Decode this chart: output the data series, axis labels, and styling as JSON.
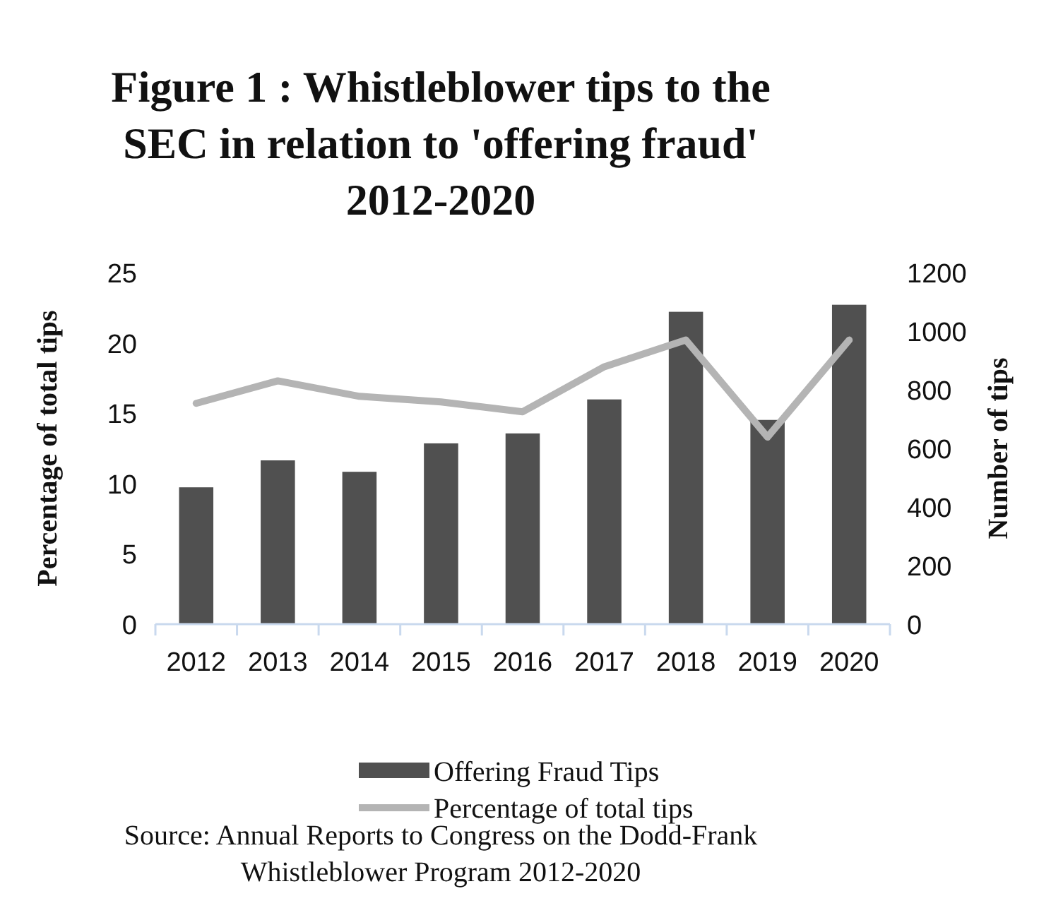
{
  "chart_data": {
    "type": "bar",
    "title": "Figure 1 : Whistleblower tips to the SEC in relation to 'offering fraud' 2012-2020",
    "ylabel": "Percentage of total tips",
    "y2label": "Number of tips",
    "categories": [
      "2012",
      "2013",
      "2014",
      "2015",
      "2016",
      "2017",
      "2018",
      "2019",
      "2020"
    ],
    "series": [
      {
        "name": "Offering Fraud Tips",
        "axis": "y2",
        "color": "#505050",
        "values": [
          467,
          559,
          520,
          617,
          651,
          767,
          1066,
          697,
          1090
        ]
      },
      {
        "name": "Percentage of total tips",
        "type": "line",
        "axis": "y",
        "color": "#b4b4b4",
        "values": [
          15.7,
          17.3,
          16.2,
          15.8,
          15.1,
          18.3,
          20.2,
          13.3,
          20.2
        ]
      }
    ],
    "ylim": [
      0,
      25
    ],
    "yticks": [
      0,
      5,
      10,
      15,
      20,
      25
    ],
    "y2lim": [
      0,
      1200
    ],
    "y2ticks": [
      0,
      200,
      400,
      600,
      800,
      1000,
      1200
    ],
    "legend": "bottom",
    "grid": false,
    "annotations": [
      "Source: Annual Reports to Congress on the Dodd-Frank Whistleblower Program 2012-2020"
    ]
  }
}
